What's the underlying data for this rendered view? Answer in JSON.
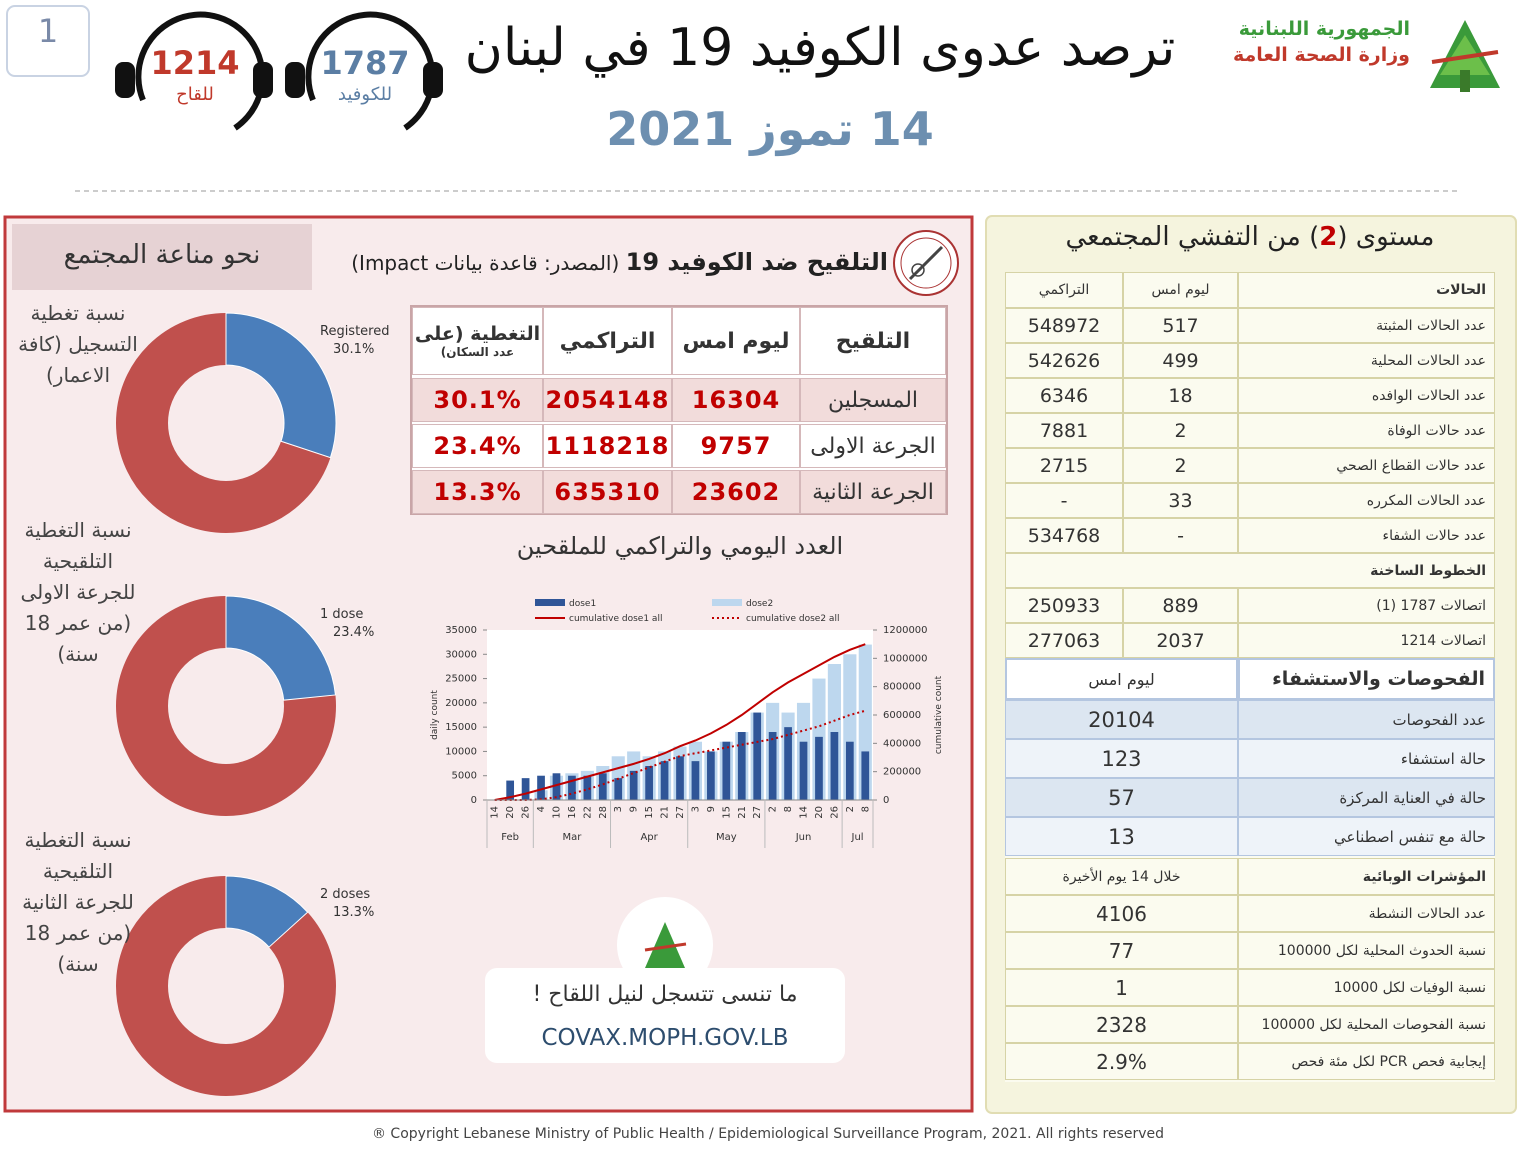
{
  "header": {
    "page_number": "1",
    "hotlines": [
      {
        "number": "1214",
        "label": "للقاح",
        "color": "#c0392b"
      },
      {
        "number": "1787",
        "label": "للكوفيد",
        "color": "#5b7ea4"
      }
    ],
    "title": "ترصد عدوى الكوفيد 19 في لبنان",
    "date": "14 تموز 2021",
    "ministry": [
      "الجمهورية اللبنانية",
      "وزارة الصحة العامة"
    ]
  },
  "vaccination": {
    "immunity_title": "نحو مناعة المجتمع",
    "title": "التلقيح ضد الكوفيد 19",
    "source": "(المصدر: قاعدة بيانات Impact)",
    "donut_color": "#4a7ebb",
    "donut_rest_color": "#c0504d",
    "donuts": [
      {
        "caption": "نسبة تغطية التسجيل (كافة الاعمار)",
        "label": "Registered",
        "value": 30.1,
        "value_label": "30.1%"
      },
      {
        "caption": "نسبة التغطية التلقيحية للجرعة الاولى (من عمر 18 سنة)",
        "label": "1 dose",
        "value": 23.4,
        "value_label": "23.4%"
      },
      {
        "caption": "نسبة التغطية التلقيحية للجرعة الثانية (من عمر 18 سنة)",
        "label": "2 doses",
        "value": 13.3,
        "value_label": "13.3%"
      }
    ],
    "table": {
      "header": [
        "التلقيح",
        "ليوم امس",
        "التراكمي",
        "التغطية (على"
      ],
      "header_note": "عدد السكان)",
      "rows": [
        [
          "المسجلين",
          "16304",
          "2054148",
          "30.1%"
        ],
        [
          "الجرعة الاولى",
          "9757",
          "1118218",
          "23.4%"
        ],
        [
          "الجرعة الثانية",
          "23602",
          "635310",
          "13.3%"
        ]
      ]
    },
    "promo": {
      "text": "ما تنسى تتسجل لنيل اللقاح !",
      "url": "COVAX.MOPH.GOV.LB"
    }
  },
  "chart_data": {
    "type": "bar_line",
    "title": "العدد اليومي والتراكمي للملقحين",
    "ylabel": "daily count",
    "y2label": "cumulative count",
    "categories": [
      "14",
      "20",
      "26",
      "4",
      "10",
      "16",
      "22",
      "28",
      "3",
      "9",
      "15",
      "21",
      "27",
      "3",
      "9",
      "15",
      "21",
      "27",
      "2",
      "8",
      "14",
      "20",
      "26",
      "2",
      "8"
    ],
    "months": [
      "Feb",
      "Mar",
      "Apr",
      "May",
      "Jun",
      "Jul"
    ],
    "ylim": [
      0,
      35000
    ],
    "yticks": [
      0,
      5000,
      10000,
      15000,
      20000,
      25000,
      30000,
      35000
    ],
    "y2lim": [
      0,
      1200000
    ],
    "y2ticks": [
      0,
      200000,
      400000,
      600000,
      800000,
      1000000,
      1200000
    ],
    "series": [
      {
        "name": "dose2",
        "kind": "bar",
        "color": "#bdd7ee",
        "values": [
          0,
          0,
          0,
          2000,
          5000,
          5500,
          6000,
          7000,
          9000,
          10000,
          9000,
          10000,
          11000,
          12000,
          10000,
          12000,
          14000,
          18000,
          20000,
          18000,
          20000,
          25000,
          28000,
          30000,
          32000
        ]
      },
      {
        "name": "dose1",
        "kind": "bar",
        "color": "#2f5597",
        "values": [
          0,
          4000,
          4500,
          5000,
          5500,
          5000,
          5000,
          5500,
          4500,
          6000,
          7000,
          8000,
          9000,
          8000,
          10000,
          12000,
          14000,
          18000,
          14000,
          15000,
          12000,
          13000,
          14000,
          12000,
          10000
        ]
      },
      {
        "name": "cumulative dose1 all",
        "kind": "line",
        "axis": "y2",
        "color": "#c00000",
        "dash": false,
        "values": [
          0,
          20000,
          45000,
          75000,
          105000,
          135000,
          165000,
          195000,
          225000,
          255000,
          290000,
          330000,
          380000,
          420000,
          470000,
          530000,
          600000,
          680000,
          760000,
          830000,
          890000,
          950000,
          1010000,
          1060000,
          1100000
        ]
      },
      {
        "name": "cumulative dose2 all",
        "kind": "line",
        "axis": "y2",
        "color": "#c00000",
        "dash": true,
        "values": [
          0,
          0,
          0,
          5000,
          20000,
          45000,
          75000,
          110000,
          150000,
          190000,
          230000,
          270000,
          310000,
          330000,
          350000,
          370000,
          390000,
          410000,
          430000,
          460000,
          490000,
          520000,
          560000,
          600000,
          630000
        ]
      }
    ]
  },
  "outbreak": {
    "title_parts": [
      "مستوى (",
      "2",
      ") من التفشي المجتمعي"
    ],
    "cases": {
      "header": [
        "الحالات",
        "ليوم امس",
        "التراكمي"
      ],
      "rows": [
        [
          "عدد الحالات المثبتة",
          "517",
          "548972"
        ],
        [
          "عدد الحالات المحلية",
          "499",
          "542626"
        ],
        [
          "عدد الحالات الوافده",
          "18",
          "6346"
        ],
        [
          "عدد حالات الوفاة",
          "2",
          "7881"
        ],
        [
          "عدد حالات القطاع الصحي",
          "2",
          "2715"
        ],
        [
          "عدد الحالات المكرره",
          "33",
          "-"
        ],
        [
          "عدد حالات الشفاء",
          "-",
          "534768"
        ]
      ]
    },
    "hotlines": {
      "title": "الخطوط الساخنة",
      "rows": [
        [
          "اتصالات 1787 (1)",
          "889",
          "250933"
        ],
        [
          "اتصالات 1214",
          "2037",
          "277063"
        ]
      ]
    },
    "tests": {
      "header": [
        "الفحوصات والاستشفاء",
        "ليوم امس"
      ],
      "rows": [
        [
          "عدد الفحوصات",
          "20104"
        ],
        [
          "حالة استشفاء",
          "123"
        ],
        [
          "حالة في العناية المركزة",
          "57"
        ],
        [
          "حالة مع تنفس اصطناعي",
          "13"
        ]
      ]
    },
    "indicators": {
      "header": [
        "المؤشرات الوبائية",
        "خلال 14 يوم الأخيرة"
      ],
      "rows": [
        [
          "عدد الحالات النشطة",
          "4106"
        ],
        [
          "نسبة الحدوث المحلية لكل 100000",
          "77"
        ],
        [
          "نسبة الوفيات لكل 10000",
          "1"
        ],
        [
          "نسبة الفحوصات المحلية لكل 100000",
          "2328"
        ],
        [
          "إيجابية فحص PCR لكل مئة فحص",
          "2.9%"
        ]
      ]
    }
  },
  "footer": "® Copyright Lebanese Ministry of Public Health / Epidemiological Surveillance Program, 2021. All rights reserved"
}
